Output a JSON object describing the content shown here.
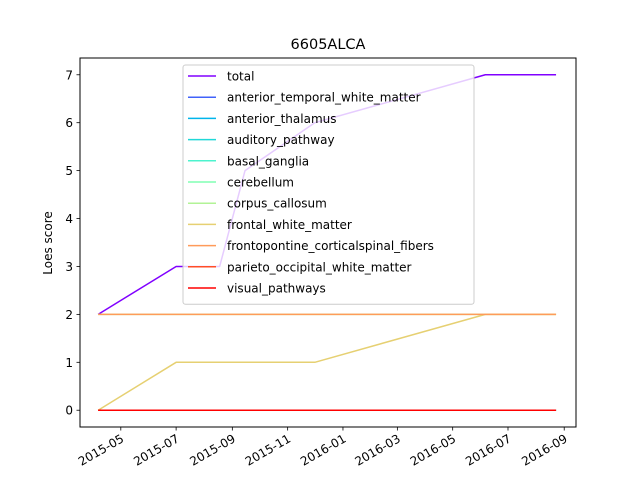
{
  "chart_data": {
    "type": "line",
    "title": "6605ALCA",
    "ylabel": "Loes score",
    "xlabel": "",
    "ylim": [
      -0.35,
      7.35
    ],
    "xlim": [
      "2015-03-17",
      "2016-09-14"
    ],
    "yticks": [
      0,
      1,
      2,
      3,
      4,
      5,
      6,
      7
    ],
    "xticks": [
      "2015-05",
      "2015-07",
      "2015-09",
      "2015-11",
      "2016-01",
      "2016-03",
      "2016-05",
      "2016-07",
      "2016-09"
    ],
    "legend_position": "upper center",
    "grid": false,
    "x": [
      "2015-04-06",
      "2015-07-01",
      "2015-08-18",
      "2015-09-15",
      "2015-12-01",
      "2016-06-06",
      "2016-08-23"
    ],
    "series": [
      {
        "name": "total",
        "color": "#8000ff",
        "values": [
          2,
          3,
          3,
          5,
          6,
          7,
          7
        ]
      },
      {
        "name": "anterior_temporal_white_matter",
        "color": "#4062fa",
        "values": [
          0,
          0,
          0,
          0,
          0,
          0,
          0
        ]
      },
      {
        "name": "anterior_thalamus",
        "color": "#00b5eb",
        "values": [
          0,
          0,
          0,
          0,
          0,
          0,
          0
        ]
      },
      {
        "name": "auditory_pathway",
        "color": "#20d8d8",
        "values": [
          0,
          0,
          0,
          0,
          0,
          0,
          0
        ]
      },
      {
        "name": "basal_ganglia",
        "color": "#4df3ce",
        "values": [
          0,
          0,
          0,
          0,
          0,
          0,
          0
        ]
      },
      {
        "name": "cerebellum",
        "color": "#80ffb4",
        "values": [
          0,
          0,
          0,
          0,
          0,
          0,
          0
        ]
      },
      {
        "name": "corpus_callosum",
        "color": "#b2f396",
        "values": [
          2,
          2,
          2,
          2,
          2,
          2,
          2
        ]
      },
      {
        "name": "frontal_white_matter",
        "color": "#e6d072",
        "values": [
          0,
          1,
          1,
          1,
          1,
          2,
          2
        ]
      },
      {
        "name": "frontopontine_corticalspinal_fibers",
        "color": "#ff9b5a",
        "values": [
          2,
          2,
          2,
          2,
          2,
          2,
          2
        ]
      },
      {
        "name": "parieto_occipital_white_matter",
        "color": "#ff4e28",
        "values": [
          0,
          0,
          0,
          0,
          0,
          0,
          0
        ]
      },
      {
        "name": "visual_pathways",
        "color": "#ff0000",
        "values": [
          0,
          0,
          0,
          0,
          0,
          0,
          0
        ]
      }
    ]
  }
}
